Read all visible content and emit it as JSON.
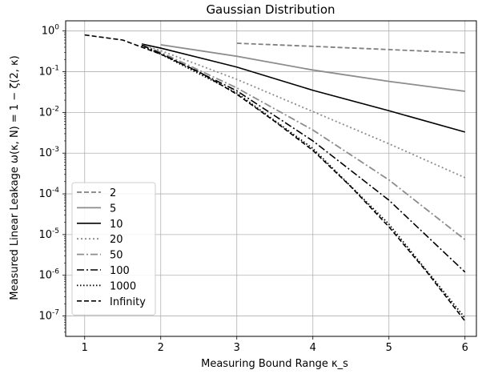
{
  "chart_data": {
    "type": "line",
    "title": "Gaussian Distribution",
    "xlabel": "Measuring Bound Range κ_s",
    "ylabel": "Measured Linear Leakage ω(κ, N) = 1 − ζ(2, κ)",
    "xlim": [
      0.75,
      6.15
    ],
    "ylim_log10": [
      -7.5,
      0.25
    ],
    "y_scale": "log",
    "grid": true,
    "legend_position": "lower-left",
    "x_ticks": [
      1,
      2,
      3,
      4,
      5,
      6
    ],
    "x_tick_labels": [
      "1",
      "2",
      "3",
      "4",
      "5",
      "6"
    ],
    "y_ticks": [
      0,
      -1,
      -2,
      -3,
      -4,
      -5,
      -6,
      -7
    ],
    "y_tick_labels": [
      "10^0",
      "10^-1",
      "10^-2",
      "10^-3",
      "10^-4",
      "10^-5",
      "10^-6",
      "10^-7"
    ],
    "series": [
      {
        "name": "2",
        "color": "#808080",
        "dash": "6,3",
        "width": 1.8,
        "x": [
          3,
          4,
          5,
          6
        ],
        "y": [
          0.5,
          0.42,
          0.35,
          0.29
        ]
      },
      {
        "name": "5",
        "color": "#8c8c8c",
        "dash": "",
        "width": 1.8,
        "x": [
          2,
          3,
          4,
          5,
          6
        ],
        "y": [
          0.46,
          0.24,
          0.11,
          0.058,
          0.033
        ]
      },
      {
        "name": "10",
        "color": "#000000",
        "dash": "",
        "width": 1.6,
        "x": [
          1.75,
          2,
          3,
          4,
          5,
          6
        ],
        "y": [
          0.48,
          0.38,
          0.13,
          0.035,
          0.011,
          0.0033
        ]
      },
      {
        "name": "20",
        "color": "#8c8c8c",
        "dash": "2,3",
        "width": 1.8,
        "x": [
          1.75,
          2,
          3,
          4,
          5,
          6
        ],
        "y": [
          0.46,
          0.33,
          0.065,
          0.0105,
          0.0017,
          0.00025
        ]
      },
      {
        "name": "50",
        "color": "#8c8c8c",
        "dash": "9,3,2,3",
        "width": 1.8,
        "x": [
          1.75,
          2,
          3,
          4,
          5,
          6
        ],
        "y": [
          0.45,
          0.3,
          0.04,
          0.0037,
          0.00022,
          7.5e-06
        ]
      },
      {
        "name": "100",
        "color": "#000000",
        "dash": "9,3,2,3",
        "width": 1.6,
        "x": [
          1.75,
          2,
          3,
          4,
          5,
          6
        ],
        "y": [
          0.45,
          0.28,
          0.034,
          0.002,
          7e-05,
          1.2e-06
        ]
      },
      {
        "name": "1000",
        "color": "#000000",
        "dash": "1.5,2.5",
        "width": 1.8,
        "x": [
          1.75,
          2,
          3,
          4,
          5,
          6
        ],
        "y": [
          0.44,
          0.27,
          0.03,
          0.0013,
          1.8e-05,
          9e-08
        ]
      },
      {
        "name": "Infinity",
        "color": "#000000",
        "dash": "6,3",
        "width": 1.6,
        "x": [
          1,
          1.5,
          2,
          2.5,
          3,
          3.5,
          4,
          4.5,
          5,
          5.5,
          6
        ],
        "y": [
          0.8,
          0.6,
          0.27,
          0.1,
          0.028,
          0.006,
          0.00117,
          0.00015,
          1.55e-05,
          1.2e-06,
          7.5e-08
        ]
      }
    ]
  }
}
